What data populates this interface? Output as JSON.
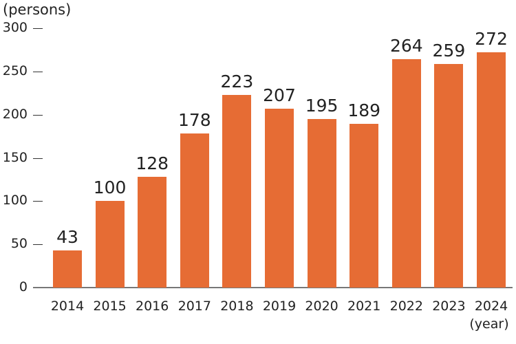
{
  "chart_data": {
    "type": "bar",
    "title": "",
    "xlabel": "(year)",
    "ylabel": "(persons)",
    "categories": [
      "2014",
      "2015",
      "2016",
      "2017",
      "2018",
      "2019",
      "2020",
      "2021",
      "2022",
      "2023",
      "2024"
    ],
    "values": [
      43,
      100,
      128,
      178,
      223,
      207,
      195,
      189,
      264,
      259,
      272
    ],
    "yticks": [
      "0",
      "50",
      "100",
      "150",
      "200",
      "250",
      "300"
    ],
    "ylim": [
      0,
      300
    ],
    "grid": false,
    "legend": "none",
    "bar_color": "#e66c34"
  },
  "labels": {
    "unit_y": "(persons)",
    "unit_x": "(year)"
  }
}
